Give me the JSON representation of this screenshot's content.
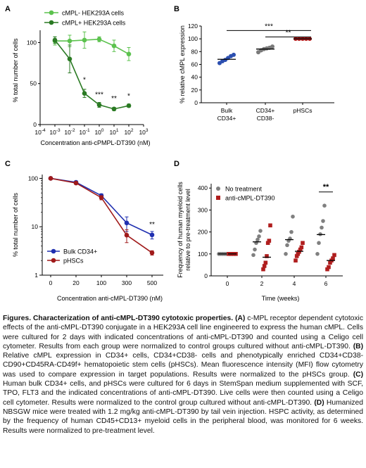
{
  "chart_data": [
    {
      "panel": "A",
      "type": "line",
      "xlabel": "Concentration anti-cPMPL-DT390 (nM)",
      "ylabel": "% total number of cells",
      "x_scale": "log",
      "x_ticks": [
        "10-4",
        "10-3",
        "10-2",
        "10-1",
        "100",
        "101",
        "102",
        "103"
      ],
      "y_ticks": [
        "0",
        "50",
        "100"
      ],
      "ylim": [
        0,
        115
      ],
      "legend_position": "top-left",
      "x": [
        0.001,
        0.01,
        0.1,
        1,
        10,
        100
      ],
      "series": [
        {
          "name": "cMPL-  HEK293A cells",
          "color": "#5cc24e",
          "values": [
            102,
            102,
            103,
            104,
            96,
            86
          ],
          "errors": [
            5,
            7,
            10,
            3,
            7,
            8
          ]
        },
        {
          "name": "cMPL+ HEK293A cells",
          "color": "#2a7a23",
          "values": [
            103,
            80,
            38,
            24,
            19,
            23
          ],
          "errors": [
            4,
            17,
            5,
            3,
            2,
            2
          ]
        }
      ],
      "annotations": [
        {
          "x": 0.1,
          "y": 52,
          "text": "*"
        },
        {
          "x": 1,
          "y": 34,
          "text": "***"
        },
        {
          "x": 10,
          "y": 29,
          "text": "**"
        },
        {
          "x": 100,
          "y": 32,
          "text": "*"
        }
      ]
    },
    {
      "panel": "B",
      "type": "scatter",
      "ylabel": "% relative cMPL expression",
      "categories": [
        "Bulk\nCD34+",
        "CD34+\nCD38-",
        "pHSCs"
      ],
      "y_ticks": [
        "0",
        "20",
        "40",
        "60",
        "80",
        "100",
        "120"
      ],
      "ylim": [
        0,
        120
      ],
      "colors": [
        "#2c4fb0",
        "#7a7a7a",
        "#b01e1e"
      ],
      "points": [
        [
          62,
          65,
          67,
          70,
          73,
          75
        ],
        [
          79,
          82,
          84,
          85,
          86,
          88
        ],
        [
          100,
          100,
          100,
          100,
          100
        ]
      ],
      "means": [
        68,
        84,
        100
      ],
      "significance": [
        {
          "from": 0,
          "to": 2,
          "y": 113,
          "text": "***"
        },
        {
          "from": 1,
          "to": 2,
          "y": 103,
          "text": "**"
        }
      ]
    },
    {
      "panel": "C",
      "type": "line",
      "xlabel": "Concentration anti-cMPL-DT390 (nM)",
      "ylabel": "% total number of cells",
      "y_scale": "log",
      "categories": [
        "0",
        "20",
        "100",
        "300",
        "500"
      ],
      "y_ticks": [
        "1",
        "10",
        "100"
      ],
      "ylim": [
        1,
        120
      ],
      "legend_position": "bottom-left",
      "series": [
        {
          "name": "Bulk CD34+",
          "color": "#1f2fb0",
          "values": [
            100,
            83,
            44,
            12,
            6.8
          ],
          "errors": [
            0,
            5,
            4,
            4,
            1.2
          ]
        },
        {
          "name": "pHSCs",
          "color": "#a01a1a",
          "values": [
            100,
            80,
            40,
            6.7,
            2.9
          ],
          "errors": [
            0,
            4,
            4,
            2,
            0.3
          ]
        }
      ],
      "annotations": [
        {
          "x": "500",
          "y": 10,
          "text": "**"
        }
      ]
    },
    {
      "panel": "D",
      "type": "scatter",
      "xlabel": "Time (weeks)",
      "ylabel": "Frequency of human myeloid cells\nrelative to pre-treatment level",
      "categories": [
        "0",
        "2",
        "4",
        "6"
      ],
      "y_ticks": [
        "0",
        "100",
        "200",
        "300",
        "400"
      ],
      "ylim": [
        0,
        420
      ],
      "legend_position": "top-left",
      "series": [
        {
          "name": "No treatment",
          "color": "#808080",
          "marker": "circle",
          "points": [
            [
              100,
              100,
              100,
              100,
              100
            ],
            [
              95,
              120,
              150,
              165,
              180,
              205
            ],
            [
              100,
              140,
              160,
              170,
              200,
              270
            ],
            [
              100,
              150,
              190,
              220,
              250,
              320
            ]
          ],
          "means": [
            100,
            155,
            165,
            188
          ]
        },
        {
          "name": "anti-cMPL-DT390",
          "color": "#b01e1e",
          "marker": "square",
          "points": [
            [
              100,
              100,
              100,
              100
            ],
            [
              30,
              45,
              60,
              90,
              150,
              160,
              230
            ],
            [
              70,
              90,
              100,
              110,
              120,
              130,
              150
            ],
            [
              30,
              40,
              60,
              70,
              80,
              95
            ]
          ],
          "means": [
            100,
            85,
            112,
            70
          ]
        }
      ],
      "annotations": [
        {
          "x": "6",
          "y": 395,
          "text": "**"
        }
      ]
    }
  ],
  "panel_letters": [
    "A",
    "B",
    "C",
    "D"
  ],
  "caption": {
    "heading": "Figures. Characterization of anti-cMPL-DT390 cytotoxic properties.",
    "a_tag": "(A)",
    "a_text": " c-MPL receptor dependent cytotoxic effects of the anti-cMPL-DT390 conjugate in a HEK293A cell line engineered to express the human cMPL. Cells were cultured for 2 days with indicated concentrations of anti-cMPL-DT390 and counted using a Celigo cell cytometer. Results from each group were normalized to control groups cultured without anti-cMPL-DT390. ",
    "b_tag": "(B)",
    "b_text": " Relative cMPL expression in CD34+ cells, CD34+CD38- cells and phenotypically enriched CD34+CD38-CD90+CD45RA-CD49f+ hematopoietic stem cells (pHSCs). Mean fluorescence intensity (MFI) flow cytometry was used to compare expression in target populations. Results were normalized to the pHSCs group. ",
    "c_tag": "(C)",
    "c_text": " Human bulk CD34+ cells, and pHSCs were cultured for 6 days in StemSpan medium supplemented with SCF, TPO, FLT3 and the indicated concentrations of anti-cMPL-DT390. Live cells were then counted using a Celigo cell cytometer. Results were normalized to the control group cultured without anti-cMPL-DT390. ",
    "d_tag": "(D)",
    "d_text": " Humanized NBSGW mice were treated with 1.2 mg/kg anti-cMPL-DT390 by tail vein injection. HSPC activity, as determined by the frequency of human CD45+CD13+ myeloid cells in the peripheral blood, was monitored for 6 weeks. Results were normalized to pre-treatment level."
  }
}
